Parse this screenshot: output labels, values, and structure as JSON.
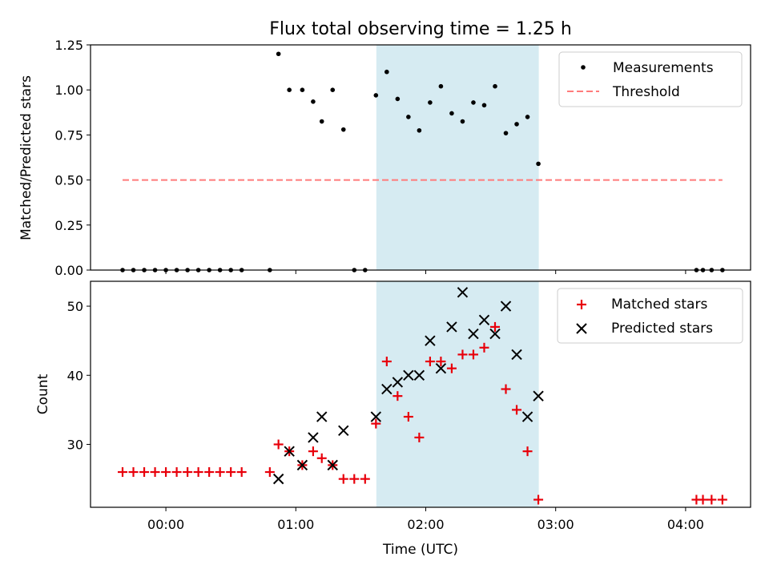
{
  "figure": {
    "title": "Flux total observing time = 1.25 h",
    "xlabel": "Time (UTC)",
    "x_ticks": [
      "00:00",
      "01:00",
      "02:00",
      "03:00",
      "04:00"
    ],
    "x_tick_values_hours": [
      0,
      1,
      2,
      3,
      4
    ],
    "x_range_hours": [
      -0.58,
      4.5
    ],
    "highlight_span_hours": [
      1.62,
      2.87
    ],
    "colors": {
      "measurements": "#000000",
      "threshold": "#ff7b7b",
      "matched": "#e8000b",
      "predicted": "#000000",
      "span": "#add8e6"
    }
  },
  "chart_data": [
    {
      "type": "scatter",
      "ylabel": "Matched/Predicted stars",
      "ylim": [
        0,
        1.25
      ],
      "y_ticks": [
        "0.00",
        "0.25",
        "0.50",
        "0.75",
        "1.00",
        "1.25"
      ],
      "y_tick_values": [
        0,
        0.25,
        0.5,
        0.75,
        1.0,
        1.25
      ],
      "legend": {
        "placement": "upper right",
        "entries": [
          "Measurements",
          "Threshold"
        ]
      },
      "series": [
        {
          "name": "Measurements",
          "marker": "dot",
          "points": [
            [
              "23:40",
              0
            ],
            [
              "23:45",
              0
            ],
            [
              "23:50",
              0
            ],
            [
              "23:55",
              0
            ],
            [
              "00:00",
              0
            ],
            [
              "00:05",
              0
            ],
            [
              "00:10",
              0
            ],
            [
              "00:15",
              0
            ],
            [
              "00:20",
              0
            ],
            [
              "00:25",
              0
            ],
            [
              "00:30",
              0
            ],
            [
              "00:35",
              0
            ],
            [
              "00:48",
              0
            ],
            [
              "00:52",
              1.2
            ],
            [
              "00:57",
              1.0
            ],
            [
              "01:03",
              1.0
            ],
            [
              "01:08",
              0.935
            ],
            [
              "01:12",
              0.825
            ],
            [
              "01:17",
              1.0
            ],
            [
              "01:22",
              0.78
            ],
            [
              "01:27",
              0
            ],
            [
              "01:32",
              0
            ],
            [
              "01:37",
              0.97
            ],
            [
              "01:42",
              1.1
            ],
            [
              "01:47",
              0.95
            ],
            [
              "01:52",
              0.85
            ],
            [
              "01:57",
              0.775
            ],
            [
              "02:02",
              0.93
            ],
            [
              "02:07",
              1.02
            ],
            [
              "02:12",
              0.87
            ],
            [
              "02:17",
              0.825
            ],
            [
              "02:22",
              0.93
            ],
            [
              "02:27",
              0.915
            ],
            [
              "02:32",
              1.02
            ],
            [
              "02:37",
              0.76
            ],
            [
              "02:42",
              0.81
            ],
            [
              "02:47",
              0.85
            ],
            [
              "02:52",
              0.59
            ],
            [
              "04:05",
              0
            ],
            [
              "04:08",
              0
            ],
            [
              "04:12",
              0
            ],
            [
              "04:17",
              0
            ]
          ]
        },
        {
          "name": "Threshold",
          "style": "dashed-line",
          "points": [
            [
              "23:40",
              0.5
            ],
            [
              "04:17",
              0.5
            ]
          ]
        }
      ]
    },
    {
      "type": "scatter",
      "ylabel": "Count",
      "ylim": [
        20.9,
        53.6
      ],
      "y_ticks": [
        "30",
        "40",
        "50"
      ],
      "y_tick_values": [
        30,
        40,
        50
      ],
      "legend": {
        "placement": "upper right",
        "entries": [
          "Matched stars",
          "Predicted stars"
        ]
      },
      "series": [
        {
          "name": "Matched stars",
          "marker": "plus",
          "points": [
            [
              "23:40",
              26
            ],
            [
              "23:45",
              26
            ],
            [
              "23:50",
              26
            ],
            [
              "23:55",
              26
            ],
            [
              "00:00",
              26
            ],
            [
              "00:05",
              26
            ],
            [
              "00:10",
              26
            ],
            [
              "00:15",
              26
            ],
            [
              "00:20",
              26
            ],
            [
              "00:25",
              26
            ],
            [
              "00:30",
              26
            ],
            [
              "00:35",
              26
            ],
            [
              "00:48",
              26
            ],
            [
              "00:52",
              30
            ],
            [
              "00:57",
              29
            ],
            [
              "01:03",
              27
            ],
            [
              "01:08",
              29
            ],
            [
              "01:12",
              28
            ],
            [
              "01:17",
              27
            ],
            [
              "01:22",
              25
            ],
            [
              "01:27",
              25
            ],
            [
              "01:32",
              25
            ],
            [
              "01:37",
              33
            ],
            [
              "01:42",
              42
            ],
            [
              "01:47",
              37
            ],
            [
              "01:52",
              34
            ],
            [
              "01:57",
              31
            ],
            [
              "02:02",
              42
            ],
            [
              "02:07",
              42
            ],
            [
              "02:12",
              41
            ],
            [
              "02:17",
              43
            ],
            [
              "02:22",
              43
            ],
            [
              "02:27",
              44
            ],
            [
              "02:32",
              47
            ],
            [
              "02:37",
              38
            ],
            [
              "02:42",
              35
            ],
            [
              "02:47",
              29
            ],
            [
              "02:52",
              22
            ],
            [
              "04:05",
              22
            ],
            [
              "04:08",
              22
            ],
            [
              "04:12",
              22
            ],
            [
              "04:17",
              22
            ]
          ]
        },
        {
          "name": "Predicted stars",
          "marker": "x",
          "points": [
            [
              "00:52",
              25
            ],
            [
              "00:57",
              29
            ],
            [
              "01:03",
              27
            ],
            [
              "01:08",
              31
            ],
            [
              "01:12",
              34
            ],
            [
              "01:17",
              27
            ],
            [
              "01:22",
              32
            ],
            [
              "01:37",
              34
            ],
            [
              "01:42",
              38
            ],
            [
              "01:47",
              39
            ],
            [
              "01:52",
              40
            ],
            [
              "01:57",
              40
            ],
            [
              "02:02",
              45
            ],
            [
              "02:07",
              41
            ],
            [
              "02:12",
              47
            ],
            [
              "02:17",
              52
            ],
            [
              "02:22",
              46
            ],
            [
              "02:27",
              48
            ],
            [
              "02:32",
              46
            ],
            [
              "02:37",
              50
            ],
            [
              "02:42",
              43
            ],
            [
              "02:47",
              34
            ],
            [
              "02:52",
              37
            ]
          ]
        }
      ]
    }
  ]
}
